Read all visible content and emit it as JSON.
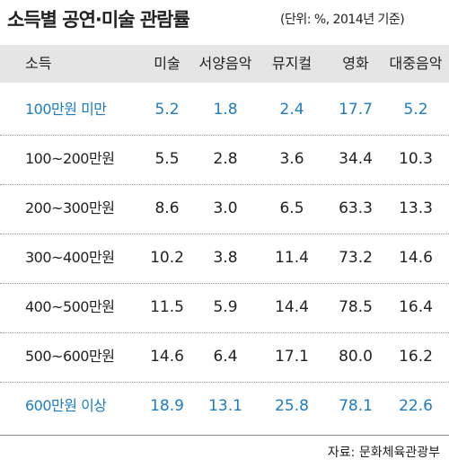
{
  "header": {
    "title": "소득별 공연·미술 관람률",
    "unit": "(단위: %, 2014년 기준)"
  },
  "table": {
    "columns": [
      "소득",
      "미술",
      "서양음악",
      "뮤지컬",
      "영화",
      "대중음악"
    ],
    "rows": [
      [
        "100만원 미만",
        "5.2",
        "1.8",
        "2.4",
        "17.7",
        "5.2"
      ],
      [
        "100~200만원",
        "5.5",
        "2.8",
        "3.6",
        "34.4",
        "10.3"
      ],
      [
        "200~300만원",
        "8.6",
        "3.0",
        "6.5",
        "63.3",
        "13.3"
      ],
      [
        "300~400만원",
        "10.2",
        "3.8",
        "11.4",
        "73.2",
        "14.6"
      ],
      [
        "400~500만원",
        "11.5",
        "5.9",
        "14.4",
        "78.5",
        "16.4"
      ],
      [
        "500~600만원",
        "14.6",
        "6.4",
        "17.1",
        "80.0",
        "16.2"
      ],
      [
        "600만원 이상",
        "18.9",
        "13.1",
        "25.8",
        "78.1",
        "22.6"
      ]
    ]
  },
  "source": "자료: 문화체육관광부"
}
